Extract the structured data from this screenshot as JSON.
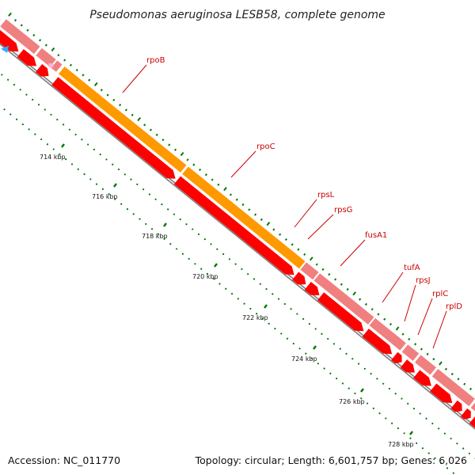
{
  "header": {
    "title": "Pseudomonas aeruginosa LESB58, complete genome"
  },
  "footer": {
    "accession": "Accession: NC_011770",
    "summary": "Topology: circular; Length: 6,601,757 bp; Genes: 6,026"
  },
  "colors": {
    "cds_forward_gene": "#f08080",
    "cds_forward_highlight": "#ff9900",
    "cds_reverse": "#ff0000",
    "backbone": "#808080",
    "ticks": "#007a00",
    "labels": "#cc0000"
  },
  "ticks": [
    {
      "label": "714 kbp"
    },
    {
      "label": "716 kbp"
    },
    {
      "label": "718 kbp"
    },
    {
      "label": "720 kbp"
    },
    {
      "label": "722 kbp"
    },
    {
      "label": "724 kbp"
    },
    {
      "label": "726 kbp"
    },
    {
      "label": "728 kbp"
    }
  ],
  "genes": [
    {
      "name": "rpoB",
      "highlight": true
    },
    {
      "name": "rpoC",
      "highlight": true
    },
    {
      "name": "rpsL",
      "highlight": false
    },
    {
      "name": "rpsG",
      "highlight": false
    },
    {
      "name": "fusA1",
      "highlight": false
    },
    {
      "name": "tufA",
      "highlight": false
    },
    {
      "name": "rpsJ",
      "highlight": false
    },
    {
      "name": "rplC",
      "highlight": false
    },
    {
      "name": "rplD",
      "highlight": false
    }
  ]
}
